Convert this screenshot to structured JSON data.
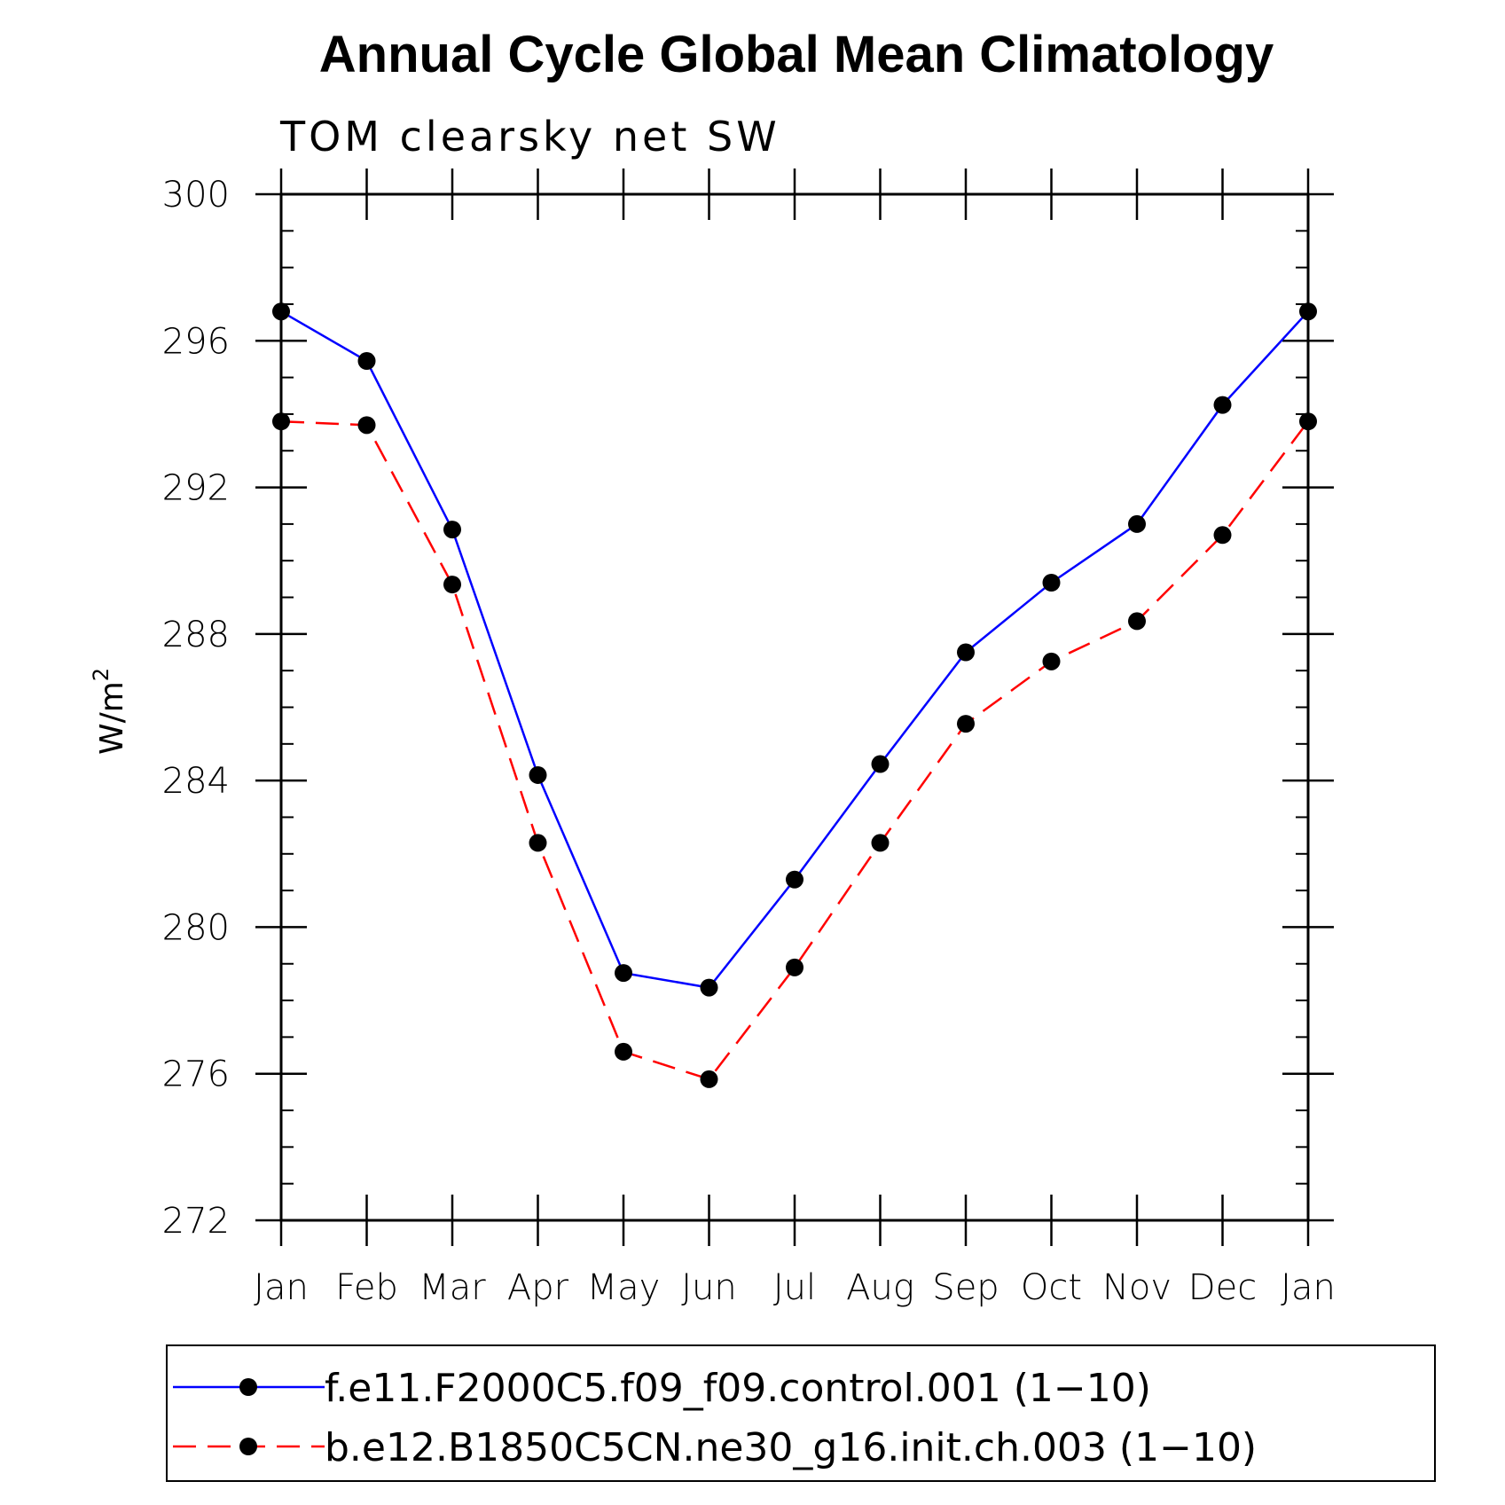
{
  "chart_data": {
    "type": "line",
    "title": "Annual Cycle Global Mean Climatology",
    "subtitle": "TOM clearsky net SW",
    "ylabel": "W/m",
    "ylabel_superscript": "2",
    "xlabel": "",
    "categories": [
      "Jan",
      "Feb",
      "Mar",
      "Apr",
      "May",
      "Jun",
      "Jul",
      "Aug",
      "Sep",
      "Oct",
      "Nov",
      "Dec",
      "Jan"
    ],
    "ylim": [
      272,
      300
    ],
    "yticks": [
      272,
      276,
      280,
      284,
      288,
      292,
      296,
      300
    ],
    "ytick_labels": [
      "272",
      "276",
      "280",
      "284",
      "288",
      "292",
      "296",
      "300"
    ],
    "grid": false,
    "legend_position": "bottom",
    "series": [
      {
        "name": "f.e11.F2000C5.f09_f09.control.001 (1−10)",
        "color": "#0000ff",
        "dash": "solid",
        "values": [
          296.8,
          295.45,
          290.85,
          284.15,
          278.75,
          278.35,
          281.3,
          284.45,
          287.5,
          289.4,
          291.0,
          294.25,
          296.8
        ]
      },
      {
        "name": "b.e12.B1850C5CN.ne30_g16.init.ch.003 (1−10)",
        "color": "#ff0000",
        "dash": "dashed",
        "values": [
          293.8,
          293.7,
          289.35,
          282.3,
          276.6,
          275.85,
          278.9,
          282.3,
          285.55,
          287.25,
          288.35,
          290.7,
          293.8
        ]
      }
    ],
    "marker_color": "#000000"
  }
}
